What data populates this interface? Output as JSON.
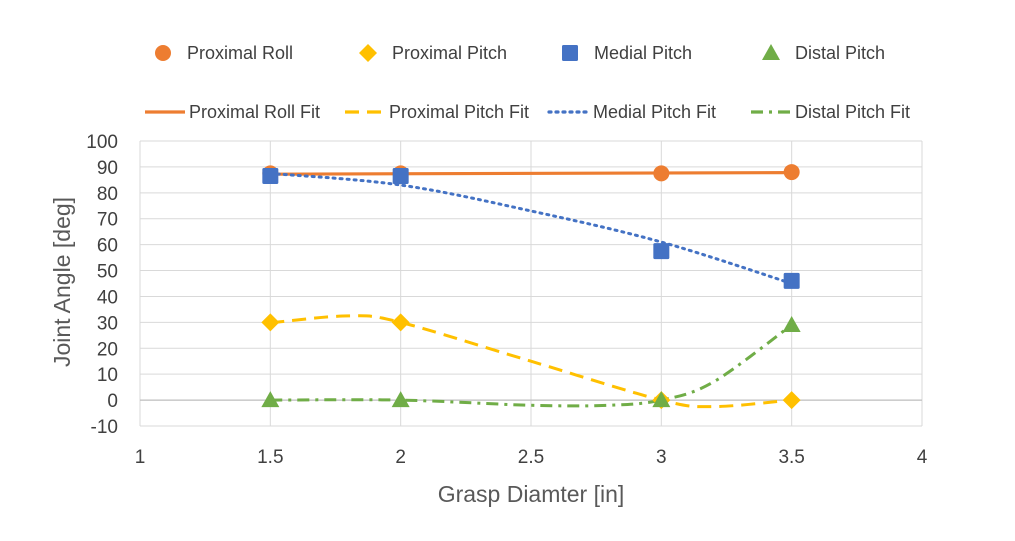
{
  "chart_data": {
    "type": "scatter",
    "title": "",
    "xlabel": "Grasp Diamter [in]",
    "ylabel": "Joint Angle [deg]",
    "xlim": [
      1,
      4
    ],
    "ylim": [
      -10,
      100
    ],
    "xticks": [
      "1",
      "1.5",
      "2",
      "2.5",
      "3",
      "3.5",
      "4"
    ],
    "yticks": [
      "-10",
      "0",
      "10",
      "20",
      "30",
      "40",
      "50",
      "60",
      "70",
      "80",
      "90",
      "100"
    ],
    "grid": true,
    "legend_position": "top",
    "series": [
      {
        "name": "Proximal Roll",
        "marker": "circle",
        "color": "#ED7D31",
        "x": [
          1.5,
          2,
          3,
          3.5
        ],
        "y": [
          87.5,
          87.5,
          87.5,
          88
        ]
      },
      {
        "name": "Proximal Pitch",
        "marker": "diamond",
        "color": "#FFC000",
        "x": [
          1.5,
          2,
          3,
          3.5
        ],
        "y": [
          30,
          30,
          0,
          0
        ]
      },
      {
        "name": "Medial Pitch",
        "marker": "square",
        "color": "#4472C4",
        "x": [
          1.5,
          2,
          3,
          3.5
        ],
        "y": [
          86.5,
          86.5,
          57.5,
          46
        ]
      },
      {
        "name": "Distal Pitch",
        "marker": "triangle",
        "color": "#70AD47",
        "x": [
          1.5,
          2,
          3,
          3.5
        ],
        "y": [
          0,
          0,
          0,
          29
        ]
      }
    ],
    "fits": [
      {
        "name": "Proximal Roll Fit",
        "dash": "solid",
        "color": "#ED7D31",
        "x": [
          1.5,
          3.5
        ],
        "y": [
          87.2,
          87.8
        ]
      },
      {
        "name": "Proximal Pitch Fit",
        "dash": "dashed",
        "color": "#FFC000",
        "x": [
          1.5,
          1.8,
          2.0,
          2.5,
          3.0,
          3.2,
          3.5
        ],
        "y": [
          29.8,
          32.5,
          30,
          15,
          0,
          -2.5,
          0
        ]
      },
      {
        "name": "Medial Pitch Fit",
        "dash": "dotted",
        "color": "#4472C4",
        "x": [
          1.5,
          2.0,
          2.5,
          3.0,
          3.5
        ],
        "y": [
          87.5,
          83,
          73,
          61,
          45
        ]
      },
      {
        "name": "Distal Pitch Fit",
        "dash": "dashdot",
        "color": "#70AD47",
        "x": [
          1.5,
          2.0,
          2.5,
          2.8,
          3.0,
          3.2,
          3.5
        ],
        "y": [
          0,
          0,
          -2,
          -2,
          0,
          7,
          29
        ]
      }
    ]
  }
}
